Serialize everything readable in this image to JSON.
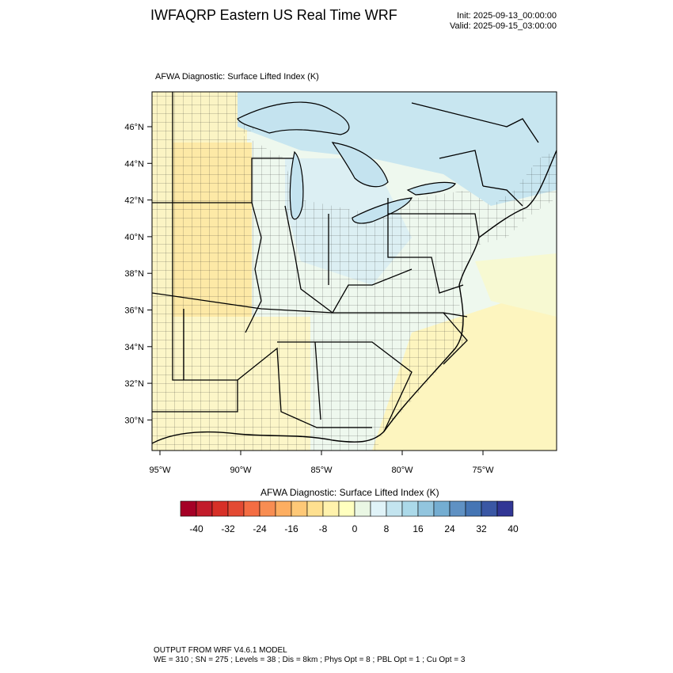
{
  "header": {
    "title": "IWFAQRP Eastern US Real Time WRF",
    "init": "Init: 2025-09-13_00:00:00",
    "valid": "Valid: 2025-09-15_03:00:00"
  },
  "map": {
    "field_title": "AFWA Diagnostic: Surface Lifted Index   (K)",
    "lat_labels": [
      "46°N",
      "44°N",
      "42°N",
      "40°N",
      "38°N",
      "36°N",
      "34°N",
      "32°N",
      "30°N"
    ],
    "lon_labels": [
      "95°W",
      "90°W",
      "85°W",
      "80°W",
      "75°W"
    ]
  },
  "colorbar": {
    "title": "AFWA Diagnostic: Surface Lifted Index  (K)",
    "tick_labels": [
      "-40",
      "-32",
      "-24",
      "-16",
      "-8",
      "0",
      "8",
      "16",
      "24",
      "32",
      "40"
    ],
    "colors": [
      "#a50026",
      "#c21c2b",
      "#d73027",
      "#e34a33",
      "#f46d43",
      "#f88d52",
      "#fdae61",
      "#fec877",
      "#fee090",
      "#fff2ac",
      "#ffffbf",
      "#eaf7e4",
      "#e0f3f8",
      "#c3e4ef",
      "#abd9e9",
      "#92c5de",
      "#74add1",
      "#5f91c3",
      "#4575b4",
      "#3a57a4",
      "#313695"
    ]
  },
  "footer": {
    "line1": "OUTPUT FROM WRF V4.6.1 MODEL",
    "line2": "WE = 310 ; SN = 275 ; Levels = 38 ; Dis = 8km ; Phys Opt = 8 ; PBL Opt = 1 ; Cu Opt = 3"
  }
}
